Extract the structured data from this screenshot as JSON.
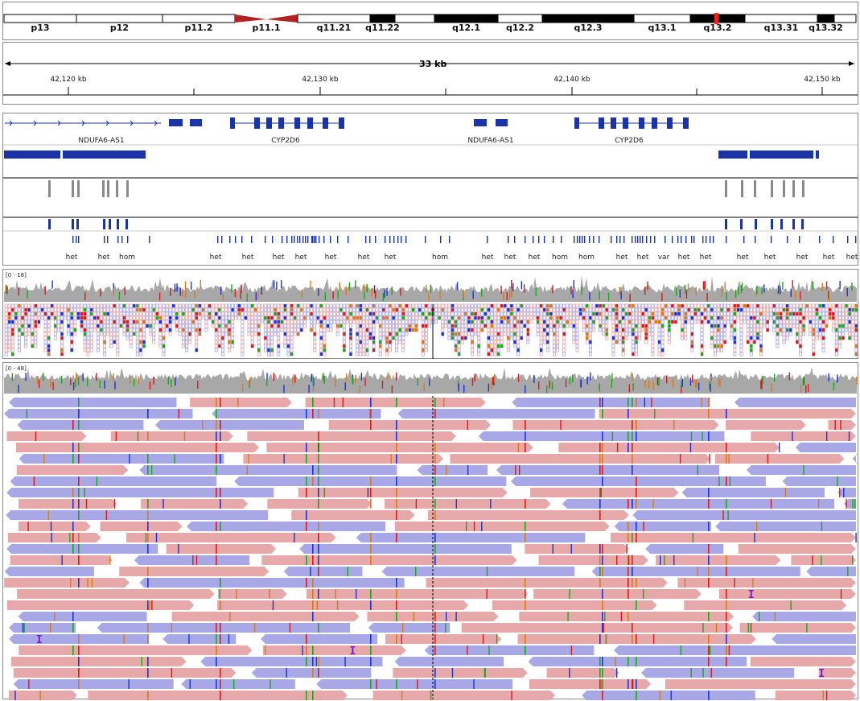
{
  "ideogram": {
    "bands": [
      {
        "label": "p13",
        "stain": "white"
      },
      {
        "label": "p12",
        "stain": "white"
      },
      {
        "label": "p11.2",
        "stain": "white"
      },
      {
        "label": "p11.1",
        "stain": "centromere"
      },
      {
        "label": "q11.21",
        "stain": "white"
      },
      {
        "label": "q11.22",
        "stain": "black"
      },
      {
        "label": "",
        "stain": "white"
      },
      {
        "label": "q12.1",
        "stain": "black"
      },
      {
        "label": "q12.2",
        "stain": "white"
      },
      {
        "label": "q12.3",
        "stain": "black"
      },
      {
        "label": "q13.1",
        "stain": "white"
      },
      {
        "label": "q13.2",
        "stain": "black"
      },
      {
        "label": "q13.31",
        "stain": "white"
      },
      {
        "label": "q13.32",
        "stain": "black"
      },
      {
        "label": "",
        "stain": "white"
      }
    ],
    "current_region_color": "#e8241c",
    "centromere_color": "#b22222"
  },
  "ruler": {
    "span_label": "33 kb",
    "ticks": [
      "42,120 kb",
      "42,130 kb",
      "42,140 kb",
      "42,150 kb"
    ]
  },
  "genes": [
    {
      "name": "NDUFA6-AS1"
    },
    {
      "name": "CYP2D6"
    },
    {
      "name": "NDUFA6-AS1"
    },
    {
      "name": "CYP2D6"
    }
  ],
  "variants": {
    "genotypes": [
      "het",
      "het",
      "hom",
      "het",
      "het",
      "het",
      "het",
      "het",
      "het",
      "het",
      "hom",
      "het",
      "het",
      "het",
      "hom",
      "hom",
      "het",
      "het",
      "var",
      "het",
      "het",
      "het",
      "het",
      "het",
      "het",
      "het"
    ]
  },
  "coverage_tracks": [
    {
      "range_label": "[0 - 18]"
    },
    {
      "range_label": "[0 - 48]"
    }
  ],
  "colors": {
    "gene": "#1a34a8",
    "coverage": "#a8a8a8",
    "read_forward": "#e6a8a8",
    "read_reverse": "#a8a8e6",
    "mismatch_a": "#1aa81a",
    "mismatch_c": "#1a34d8",
    "mismatch_g": "#d87a1a",
    "mismatch_t": "#d81a1a",
    "insertion": "#7a1ad8",
    "variant_gray": "#8a8a8a"
  }
}
